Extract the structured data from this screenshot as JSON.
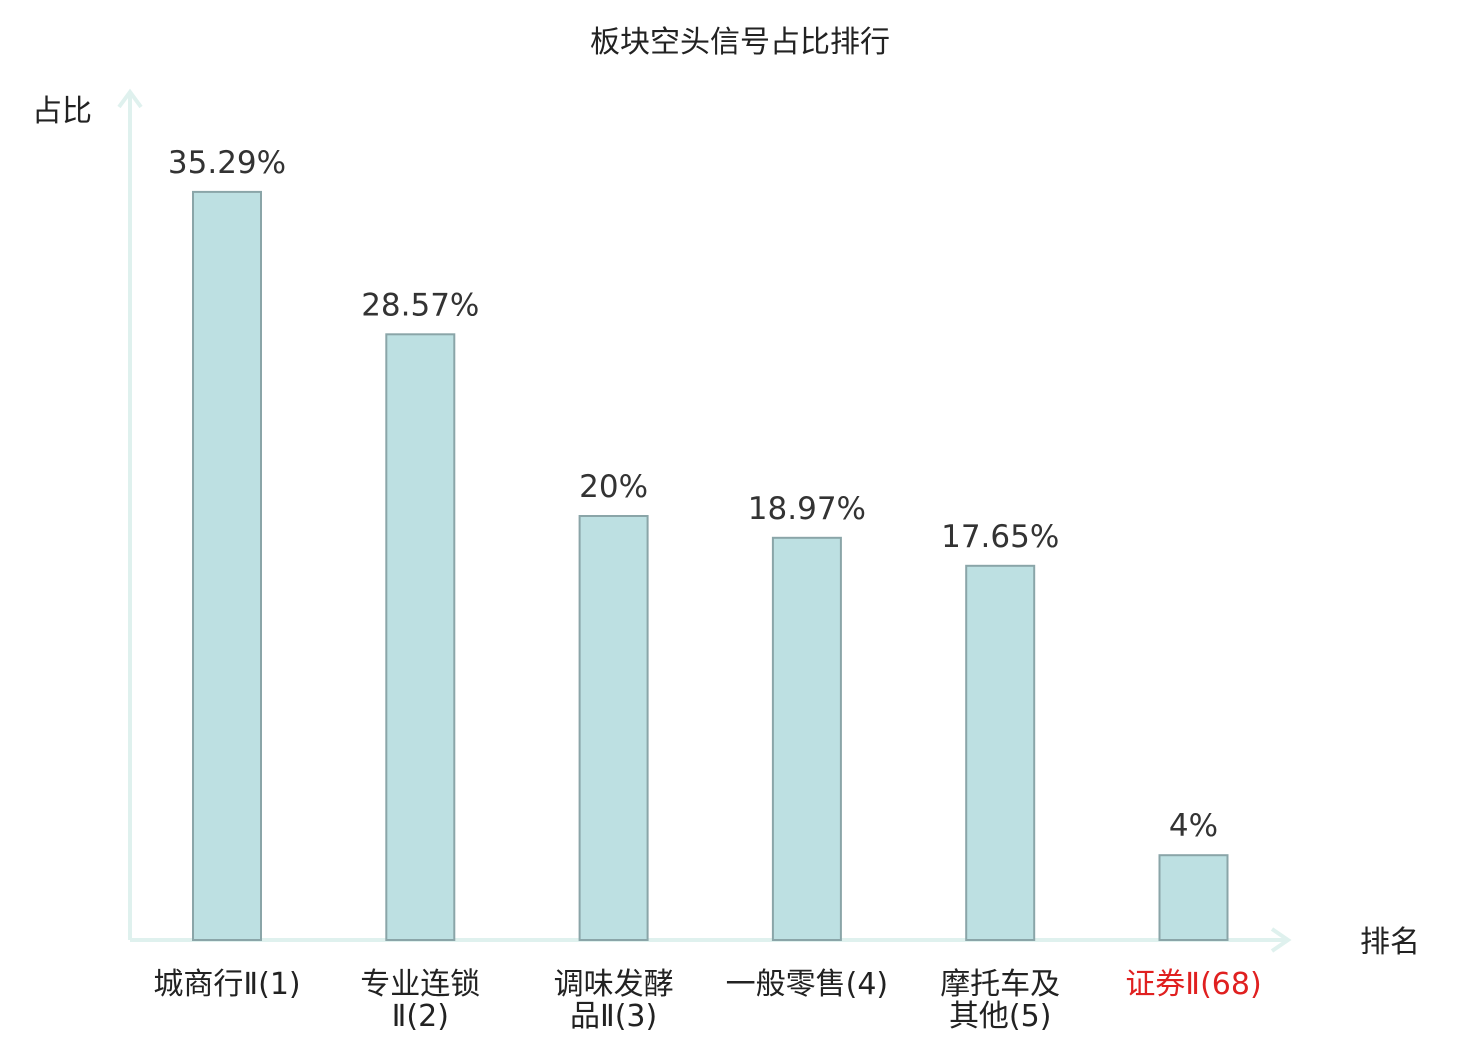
{
  "chart_data": {
    "type": "bar",
    "title": "板块空头信号占比排行",
    "ylabel": "占比",
    "xlabel": "排名",
    "grid": false,
    "ylim": [
      0,
      40
    ],
    "categories": [
      [
        "城商行Ⅱ(1)"
      ],
      [
        "专业连锁",
        "Ⅱ(2)"
      ],
      [
        "调味发酵",
        "品Ⅱ(3)"
      ],
      [
        "一般零售(4)"
      ],
      [
        "摩托车及",
        "其他(5)"
      ],
      [
        "证券Ⅱ(68)"
      ]
    ],
    "values": [
      35.29,
      28.57,
      20,
      18.97,
      17.65,
      4
    ],
    "value_labels": [
      "35.29%",
      "28.57%",
      "20%",
      "18.97%",
      "17.65%",
      "4%"
    ],
    "highlight_index": 5
  },
  "colors": {
    "bar_fill": "#bde0e2",
    "bar_stroke": "#8aa5a8",
    "axis": "#dff1ee",
    "text": "#222222",
    "value_text": "#333333",
    "highlight": "#e02020"
  }
}
